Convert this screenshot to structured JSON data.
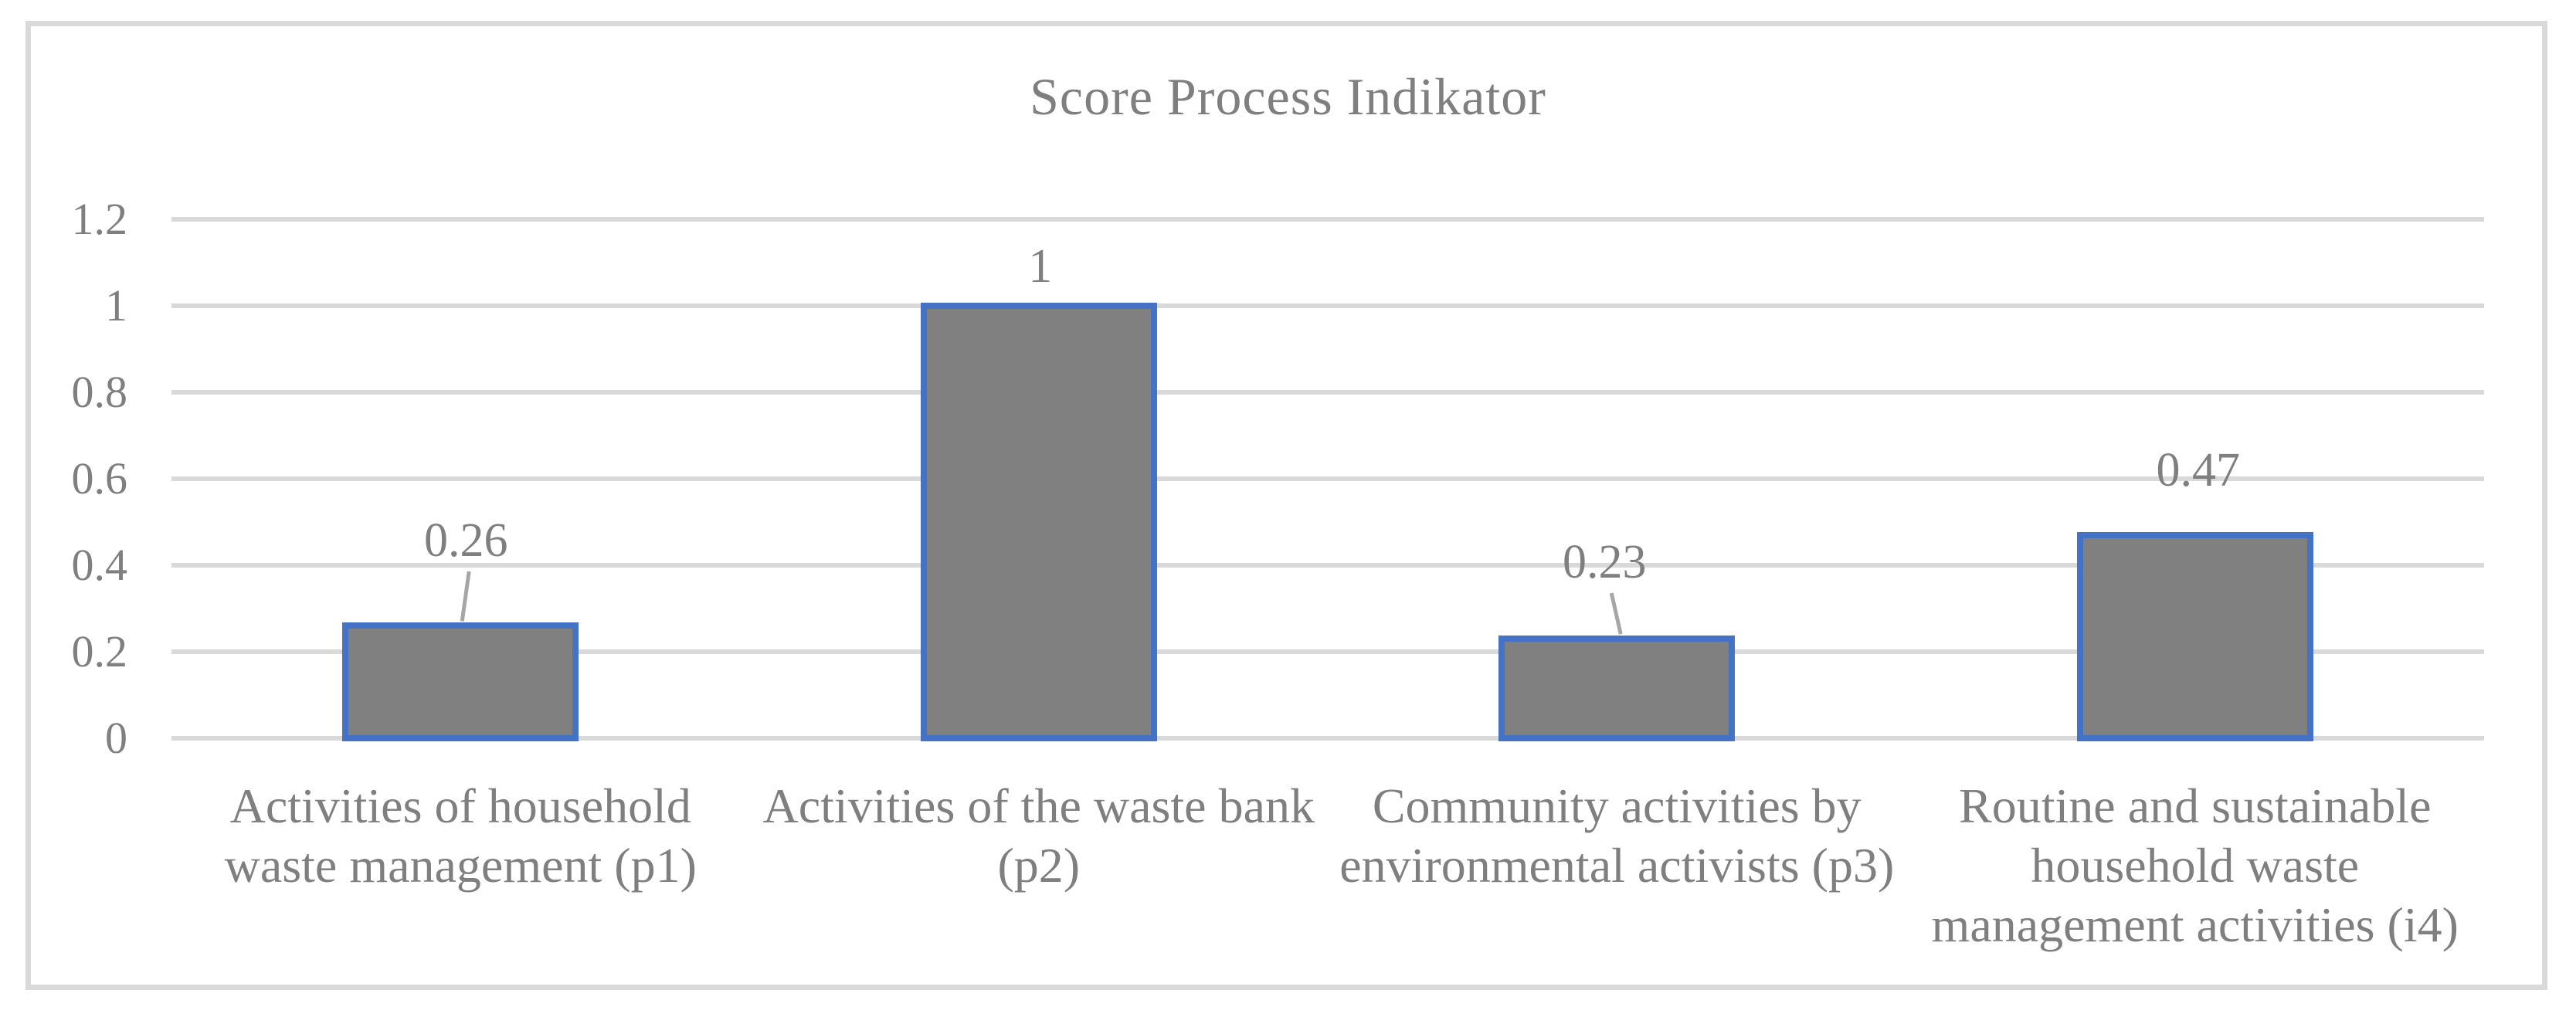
{
  "chart_data": {
    "type": "bar",
    "title": "Score Process Indikator",
    "categories": [
      "Activities of household\nwaste management (p1)",
      "Activities of the waste bank\n(p2)",
      "Community activities by\nenvironmental activists (p3)",
      "Routine and sustainable\nhousehold waste\nmanagement activities (i4)"
    ],
    "values": [
      0.26,
      1,
      0.23,
      0.47
    ],
    "data_labels": [
      "0.26",
      "1",
      "0.23",
      "0.47"
    ],
    "xlabel": "",
    "ylabel": "",
    "ylim": [
      0,
      1.2
    ],
    "yticks": [
      0,
      0.2,
      0.4,
      0.6,
      0.8,
      1,
      1.2
    ],
    "ytick_labels": [
      "0",
      "0.2",
      "0.4",
      "0.6",
      "0.8",
      "1",
      "1.2"
    ],
    "grid": "horizontal",
    "legend": "none",
    "colors": {
      "bar_fill": "#808080",
      "bar_border": "#4472c4",
      "gridline": "#d9d9d9",
      "text": "#7f7f7f",
      "leader_line": "#a6a6a6",
      "chart_border": "#d9d9d9"
    }
  }
}
